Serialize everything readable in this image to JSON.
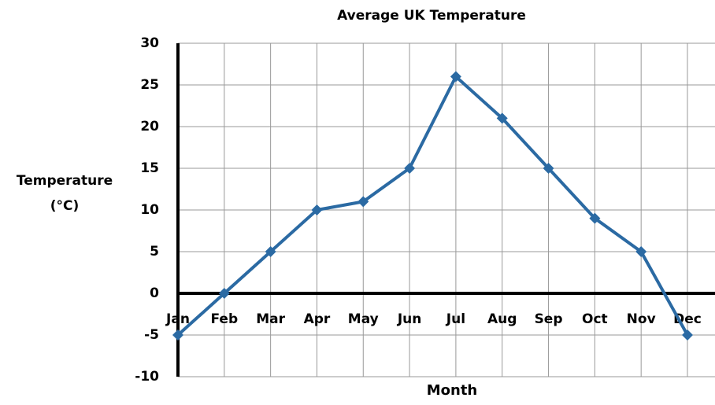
{
  "chart_data": {
    "type": "line",
    "title": "Average UK Temperature",
    "xlabel": "Month",
    "ylabel": "Temperature (°C)",
    "categories": [
      "Jan",
      "Feb",
      "Mar",
      "Apr",
      "May",
      "Jun",
      "Jul",
      "Aug",
      "Sep",
      "Oct",
      "Nov",
      "Dec"
    ],
    "series": [
      {
        "name": "Temperature",
        "color": "#2b6aa3",
        "values": [
          -5,
          0,
          5,
          10,
          11,
          15,
          26,
          21,
          15,
          9,
          5,
          -5
        ]
      }
    ],
    "ylim": [
      -10,
      30
    ],
    "yticks": [
      -10,
      -5,
      0,
      5,
      10,
      15,
      20,
      25,
      30
    ],
    "grid": true
  }
}
